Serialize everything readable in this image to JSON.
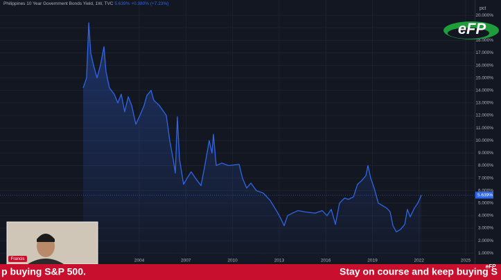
{
  "chart_data": {
    "type": "line",
    "title": "Philippines 10 Year Government Bonds Yield, 1W, TVC",
    "last": {
      "value": 5.639,
      "label": "5.639%"
    },
    "change": "+0.380%",
    "change_pct": "(+7.23%)",
    "y_unit": "pct",
    "series": [
      {
        "name": "Philippines 10 Year Government Bonds Yield",
        "color": "#2f66e8",
        "x": [
          2000.39,
          2000.61,
          2000.75,
          2000.88,
          2001.06,
          2001.28,
          2001.5,
          2001.73,
          2001.86,
          2002.08,
          2002.39,
          2002.62,
          2002.84,
          2003.06,
          2003.29,
          2003.51,
          2003.78,
          2004.04,
          2004.31,
          2004.49,
          2004.76,
          2004.94,
          2005.29,
          2005.74,
          2005.96,
          2006.18,
          2006.32,
          2006.45,
          2006.59,
          2006.85,
          2007.08,
          2007.34,
          2007.61,
          2007.97,
          2008.19,
          2008.5,
          2008.68,
          2008.77,
          2008.95,
          2009.31,
          2009.75,
          2010.42,
          2010.64,
          2010.91,
          2011.18,
          2011.53,
          2011.98,
          2012.43,
          2012.87,
          2013.09,
          2013.32,
          2013.54,
          2013.85,
          2014.21,
          2014.66,
          2015.32,
          2015.77,
          2016.08,
          2016.35,
          2016.62,
          2016.88,
          2017.2,
          2017.46,
          2017.78,
          2018.04,
          2018.31,
          2018.58,
          2018.71,
          2018.89,
          2019.11,
          2019.38,
          2019.65,
          2019.92,
          2020.14,
          2020.32,
          2020.54,
          2020.81,
          2021.08,
          2021.25,
          2021.43,
          2021.7,
          2021.92,
          2022.15
        ],
        "values": [
          14.2,
          15.0,
          19.4,
          17.0,
          16.0,
          15.0,
          16.0,
          17.5,
          15.5,
          14.2,
          13.7,
          13.0,
          13.7,
          12.3,
          13.5,
          12.8,
          11.3,
          12.0,
          12.8,
          13.6,
          14.0,
          13.2,
          12.8,
          12.0,
          10.0,
          8.5,
          7.4,
          11.9,
          8.5,
          6.5,
          7.0,
          7.5,
          7.0,
          6.4,
          7.8,
          10.0,
          9.0,
          10.5,
          8.0,
          8.2,
          8.0,
          8.1,
          7.0,
          6.2,
          6.6,
          6.0,
          5.8,
          5.2,
          4.3,
          3.8,
          3.2,
          4.0,
          4.2,
          4.4,
          4.3,
          4.2,
          4.4,
          4.0,
          4.5,
          3.3,
          5.0,
          5.4,
          5.3,
          5.5,
          6.5,
          6.8,
          7.2,
          8.0,
          7.0,
          6.2,
          5.0,
          4.8,
          4.6,
          4.3,
          3.2,
          2.7,
          2.9,
          3.3,
          4.5,
          3.9,
          4.6,
          5.0,
          5.64
        ]
      }
    ],
    "xlim": [
      1995.04,
      2025.6
    ],
    "xticks": [
      2004,
      2007,
      2010,
      2013,
      2016,
      2019,
      2022,
      2025
    ],
    "ylim": [
      0.35,
      20.45
    ],
    "yticks": [
      {
        "value": 1,
        "label": "1.000%"
      },
      {
        "value": 2,
        "label": "2.000%"
      },
      {
        "value": 3,
        "label": "3.000%"
      },
      {
        "value": 4,
        "label": "4.000%"
      },
      {
        "value": 5,
        "label": "5.000%"
      },
      {
        "value": 6,
        "label": "6.000%"
      },
      {
        "value": 7,
        "label": "7.000%"
      },
      {
        "value": 8,
        "label": "8.000%"
      },
      {
        "value": 9,
        "label": "9.000%"
      },
      {
        "value": 10,
        "label": "10.000%"
      },
      {
        "value": 11,
        "label": "11.000%"
      },
      {
        "value": 12,
        "label": "12.000%"
      },
      {
        "value": 13,
        "label": "13.000%"
      },
      {
        "value": 14,
        "label": "14.000%"
      },
      {
        "value": 15,
        "label": "15.000%"
      },
      {
        "value": 16,
        "label": "16.000%"
      },
      {
        "value": 17,
        "label": "17.000%"
      },
      {
        "value": 18,
        "label": "18.000%"
      },
      {
        "value": 19,
        "label": "19.000%"
      },
      {
        "value": 20,
        "label": "20.000%"
      }
    ],
    "grid": true
  },
  "video": {
    "ticker_left": "p buying S&P 500.",
    "ticker_right": "Stay on course and keep buying S",
    "presenter": "Francis",
    "logo": "eFP",
    "logo_small": "eFP"
  }
}
